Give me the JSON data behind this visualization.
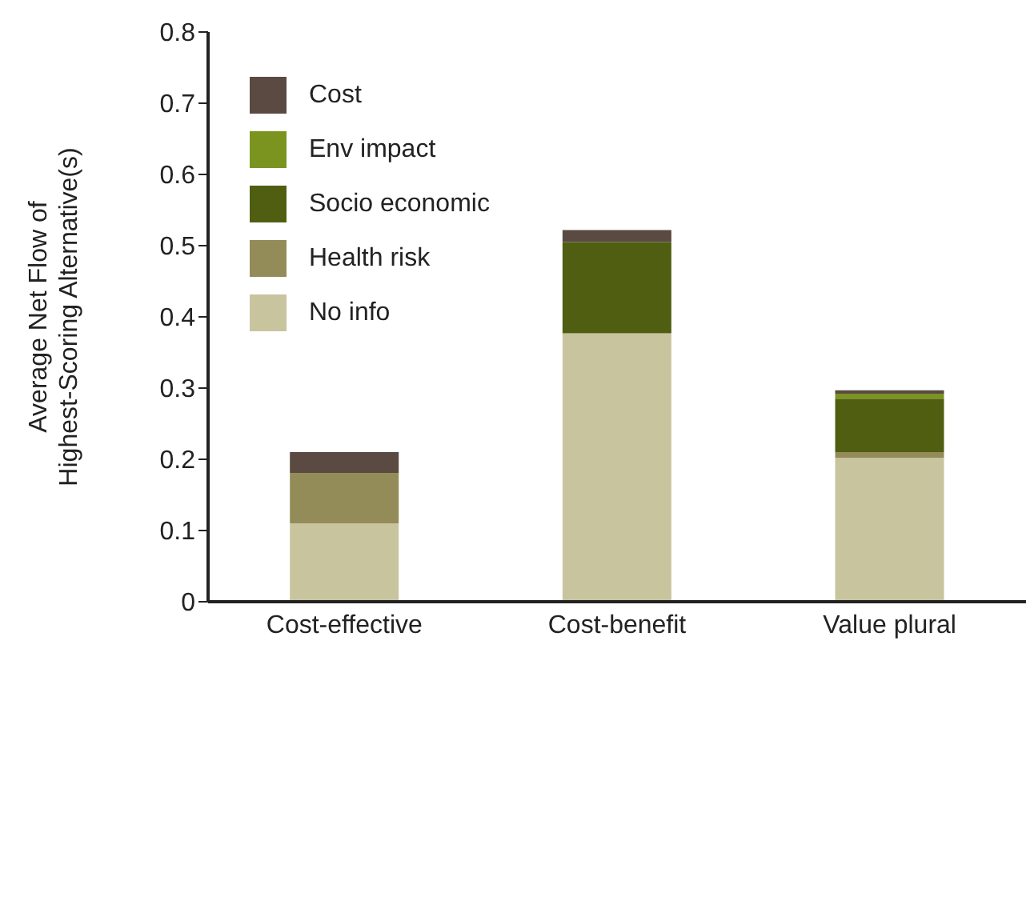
{
  "chart_data": {
    "type": "bar",
    "stacked": true,
    "ylabel": "Average Net Flow of Highest-Scoring Alternative(s)",
    "categories": [
      "Cost-effective",
      "Cost-benefit",
      "Value plural"
    ],
    "series": [
      {
        "name": "No info",
        "color": "#c8c49e",
        "values": [
          0.11,
          0.377,
          0.202
        ]
      },
      {
        "name": "Health risk",
        "color": "#938c58",
        "values": [
          0.071,
          0,
          0.008
        ]
      },
      {
        "name": "Socio economic",
        "color": "#4f5e10",
        "values": [
          0,
          0.128,
          0.075
        ]
      },
      {
        "name": "Env impact",
        "color": "#7b9420",
        "values": [
          0,
          0,
          0.007
        ]
      },
      {
        "name": "Cost",
        "color": "#5a4a42",
        "values": [
          0.029,
          0.017,
          0.005
        ]
      }
    ],
    "ylim": [
      0,
      0.8
    ],
    "yticks": [
      0,
      0.1,
      0.2,
      0.3,
      0.4,
      0.5,
      0.6,
      0.7,
      0.8
    ],
    "legend": "top left",
    "grid": false
  }
}
